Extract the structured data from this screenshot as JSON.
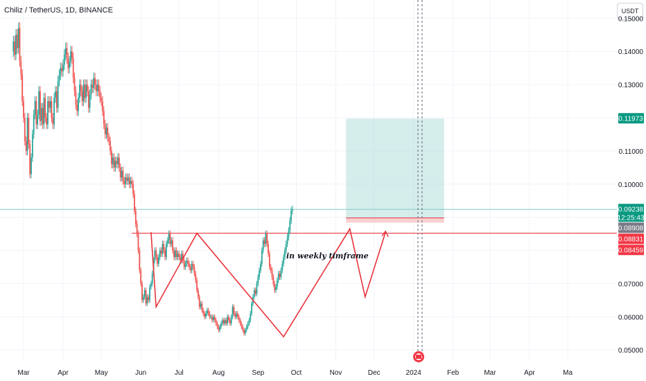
{
  "header": {
    "title": "Chiliz / TetherUS, 1D, BINANCE",
    "currency": "USDT"
  },
  "annotation": "in weekly timframe",
  "colors": {
    "up": "#26a69a",
    "down": "#ef5350",
    "pattern": "#e8333c",
    "target_zone": "#b2dfdb",
    "stop_zone": "#f7c6c7",
    "grid": "#f0f3fa",
    "current_line": "#80cbc4"
  },
  "chart_data": {
    "type": "candlestick",
    "symbol": "CHZUSDT",
    "interval": "1D",
    "exchange": "BINANCE",
    "x_ticks": [
      "Mar",
      "Apr",
      "May",
      "Jun",
      "Jul",
      "Aug",
      "Sep",
      "Oct",
      "Nov",
      "Dec",
      "2024",
      "Feb",
      "Mar",
      "Apr",
      "Ma"
    ],
    "y_ticks": [
      "0.15000",
      "0.14000",
      "0.13000",
      "0.12000",
      "0.11000",
      "0.10000",
      "0.09000",
      "0.08000",
      "0.07000",
      "0.06000",
      "0.05000"
    ],
    "ylim": [
      0.0465,
      0.1555
    ],
    "price_labels": [
      {
        "value": 0.11973,
        "text": "0.11973",
        "color": "#089981"
      },
      {
        "value": 0.09238,
        "text": "0.09238",
        "text2": "12:25:43",
        "color": "#089981"
      },
      {
        "value": 0.08908,
        "text": "0.08908",
        "color": "#787b86"
      },
      {
        "value": 0.08831,
        "text": "0.08831",
        "color": "#f23645"
      },
      {
        "value": 0.08459,
        "text": "0.08459",
        "color": "#f23645"
      }
    ],
    "horizontal_levels": [
      {
        "name": "resistance",
        "value": 0.0852
      },
      {
        "name": "current",
        "value": 0.09238
      }
    ],
    "position": {
      "entry": 0.0898,
      "target": 0.11973,
      "stop": 0.089,
      "start": "2023-11-09",
      "end": "2024-01-25"
    },
    "pattern_line": [
      {
        "date": "2023-06-09",
        "price": 0.0855
      },
      {
        "date": "2023-06-13",
        "price": 0.063
      },
      {
        "date": "2023-07-15",
        "price": 0.0852
      },
      {
        "date": "2023-09-21",
        "price": 0.054
      },
      {
        "date": "2023-11-12",
        "price": 0.0865
      },
      {
        "date": "2023-11-24",
        "price": 0.066
      },
      {
        "date": "2023-12-10",
        "price": 0.0855
      }
    ],
    "small_arrow": {
      "date": "2023-12-10",
      "price": 0.0858
    },
    "candles": {
      "start_date": "2023-02-21",
      "open": [
        0.14,
        0.143,
        0.139,
        0.145,
        0.141,
        0.147,
        0.137,
        0.133,
        0.125,
        0.12,
        0.113,
        0.11,
        0.12,
        0.112,
        0.103,
        0.108,
        0.115,
        0.121,
        0.125,
        0.118,
        0.121,
        0.128,
        0.119,
        0.123,
        0.118,
        0.126,
        0.12,
        0.118,
        0.125,
        0.123,
        0.125,
        0.12,
        0.118,
        0.126,
        0.128,
        0.123,
        0.131,
        0.133,
        0.135,
        0.134,
        0.136,
        0.139,
        0.141,
        0.138,
        0.135,
        0.137,
        0.14,
        0.138,
        0.132,
        0.128,
        0.124,
        0.122,
        0.126,
        0.13,
        0.128,
        0.125,
        0.13,
        0.126,
        0.13,
        0.128,
        0.123,
        0.127,
        0.13,
        0.129,
        0.132,
        0.13,
        0.128,
        0.13,
        0.128,
        0.126,
        0.125,
        0.122,
        0.118,
        0.115,
        0.117,
        0.114,
        0.113,
        0.11,
        0.106,
        0.108,
        0.105,
        0.107,
        0.106,
        0.108,
        0.105,
        0.102,
        0.104,
        0.101,
        0.1,
        0.102,
        0.101,
        0.102,
        0.1,
        0.101,
        0.1,
        0.097,
        0.092,
        0.088,
        0.085,
        0.08,
        0.074,
        0.07,
        0.065,
        0.066,
        0.068,
        0.064,
        0.066,
        0.065,
        0.069,
        0.07,
        0.073,
        0.077,
        0.08,
        0.078,
        0.076,
        0.078,
        0.08,
        0.079,
        0.082,
        0.08,
        0.078,
        0.082,
        0.083,
        0.085,
        0.082,
        0.083,
        0.08,
        0.078,
        0.08,
        0.078,
        0.079,
        0.078,
        0.077,
        0.079,
        0.077,
        0.075,
        0.076,
        0.077,
        0.076,
        0.075,
        0.074,
        0.076,
        0.075,
        0.073,
        0.071,
        0.068,
        0.066,
        0.063,
        0.064,
        0.062,
        0.061,
        0.06,
        0.061,
        0.062,
        0.061,
        0.06,
        0.06,
        0.059,
        0.06,
        0.059,
        0.058,
        0.057,
        0.056,
        0.057,
        0.058,
        0.059,
        0.058,
        0.059,
        0.058,
        0.06,
        0.059,
        0.058,
        0.06,
        0.063,
        0.061,
        0.06,
        0.061,
        0.06,
        0.059,
        0.058,
        0.057,
        0.056,
        0.055,
        0.056,
        0.057,
        0.058,
        0.059,
        0.061,
        0.064,
        0.066,
        0.068,
        0.067,
        0.07,
        0.072,
        0.074,
        0.076,
        0.08,
        0.083,
        0.082,
        0.085,
        0.082,
        0.079,
        0.075,
        0.074,
        0.072,
        0.07,
        0.068,
        0.069,
        0.071,
        0.073,
        0.072,
        0.074,
        0.076,
        0.078,
        0.08,
        0.082,
        0.084,
        0.086,
        0.089,
        0.092
      ],
      "close": [
        0.143,
        0.139,
        0.145,
        0.141,
        0.147,
        0.137,
        0.133,
        0.125,
        0.12,
        0.113,
        0.11,
        0.12,
        0.112,
        0.103,
        0.108,
        0.115,
        0.121,
        0.125,
        0.118,
        0.121,
        0.128,
        0.119,
        0.123,
        0.118,
        0.126,
        0.12,
        0.118,
        0.125,
        0.123,
        0.125,
        0.12,
        0.118,
        0.126,
        0.128,
        0.123,
        0.131,
        0.133,
        0.135,
        0.134,
        0.136,
        0.139,
        0.141,
        0.138,
        0.135,
        0.137,
        0.14,
        0.138,
        0.132,
        0.128,
        0.124,
        0.122,
        0.126,
        0.13,
        0.128,
        0.125,
        0.13,
        0.126,
        0.13,
        0.128,
        0.123,
        0.127,
        0.13,
        0.129,
        0.132,
        0.13,
        0.128,
        0.13,
        0.128,
        0.126,
        0.125,
        0.122,
        0.118,
        0.115,
        0.117,
        0.114,
        0.113,
        0.11,
        0.106,
        0.108,
        0.105,
        0.107,
        0.106,
        0.108,
        0.105,
        0.102,
        0.104,
        0.101,
        0.1,
        0.102,
        0.101,
        0.102,
        0.1,
        0.101,
        0.1,
        0.097,
        0.092,
        0.088,
        0.085,
        0.08,
        0.074,
        0.07,
        0.065,
        0.066,
        0.068,
        0.064,
        0.066,
        0.065,
        0.069,
        0.07,
        0.073,
        0.077,
        0.08,
        0.078,
        0.076,
        0.078,
        0.08,
        0.079,
        0.082,
        0.08,
        0.078,
        0.082,
        0.083,
        0.085,
        0.082,
        0.083,
        0.08,
        0.078,
        0.08,
        0.078,
        0.079,
        0.078,
        0.077,
        0.079,
        0.077,
        0.075,
        0.076,
        0.077,
        0.076,
        0.075,
        0.074,
        0.076,
        0.075,
        0.073,
        0.071,
        0.068,
        0.066,
        0.063,
        0.064,
        0.062,
        0.061,
        0.06,
        0.061,
        0.062,
        0.061,
        0.06,
        0.06,
        0.059,
        0.06,
        0.059,
        0.058,
        0.057,
        0.056,
        0.057,
        0.058,
        0.059,
        0.058,
        0.059,
        0.058,
        0.06,
        0.059,
        0.058,
        0.06,
        0.063,
        0.061,
        0.06,
        0.061,
        0.06,
        0.059,
        0.058,
        0.057,
        0.056,
        0.055,
        0.056,
        0.057,
        0.058,
        0.059,
        0.061,
        0.064,
        0.066,
        0.068,
        0.067,
        0.07,
        0.072,
        0.074,
        0.076,
        0.08,
        0.083,
        0.082,
        0.085,
        0.082,
        0.079,
        0.075,
        0.074,
        0.072,
        0.07,
        0.068,
        0.069,
        0.071,
        0.073,
        0.072,
        0.074,
        0.076,
        0.078,
        0.08,
        0.082,
        0.084,
        0.086,
        0.089,
        0.092,
        0.0924
      ]
    }
  }
}
